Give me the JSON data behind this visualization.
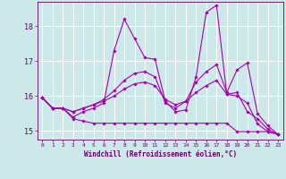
{
  "xlabel": "Windchill (Refroidissement éolien,°C)",
  "x_ticks": [
    0,
    1,
    2,
    3,
    4,
    5,
    6,
    7,
    8,
    9,
    10,
    11,
    12,
    13,
    14,
    15,
    16,
    17,
    18,
    19,
    20,
    21,
    22,
    23
  ],
  "ylim": [
    14.75,
    18.7
  ],
  "yticks": [
    15,
    16,
    17,
    18
  ],
  "background_color": "#cce8e8",
  "grid_color": "#ffffff",
  "line_color": "#aa00aa",
  "series": [
    [
      15.95,
      15.65,
      15.65,
      15.4,
      15.55,
      15.65,
      15.8,
      17.3,
      18.2,
      17.65,
      17.1,
      17.05,
      15.85,
      15.55,
      15.6,
      16.55,
      18.4,
      18.6,
      16.05,
      16.1,
      15.55,
      15.35,
      15.05,
      14.9
    ],
    [
      15.95,
      15.65,
      15.65,
      15.55,
      15.65,
      15.75,
      15.9,
      16.15,
      16.45,
      16.65,
      16.7,
      16.55,
      15.8,
      15.65,
      15.85,
      16.4,
      16.7,
      16.9,
      16.1,
      16.75,
      16.95,
      15.5,
      15.15,
      14.9
    ],
    [
      15.95,
      15.65,
      15.65,
      15.55,
      15.65,
      15.75,
      15.85,
      16.0,
      16.2,
      16.35,
      16.4,
      16.3,
      15.9,
      15.75,
      15.85,
      16.1,
      16.3,
      16.45,
      16.05,
      16.0,
      15.8,
      15.2,
      14.98,
      14.9
    ],
    [
      15.95,
      15.65,
      15.65,
      15.35,
      15.28,
      15.22,
      15.22,
      15.22,
      15.22,
      15.22,
      15.22,
      15.22,
      15.22,
      15.22,
      15.22,
      15.22,
      15.22,
      15.22,
      15.22,
      14.98,
      14.98,
      14.98,
      14.98,
      14.9
    ]
  ]
}
